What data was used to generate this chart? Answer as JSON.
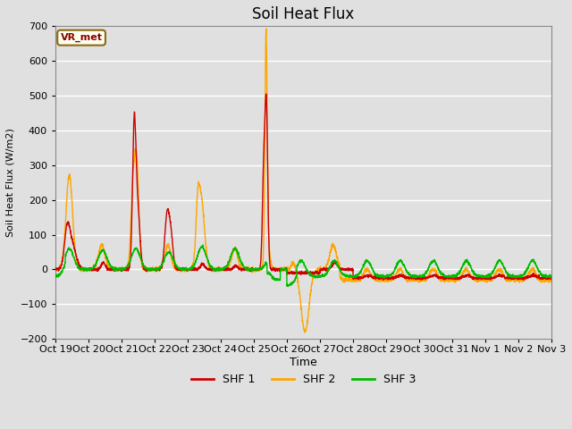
{
  "title": "Soil Heat Flux",
  "xlabel": "Time",
  "ylabel": "Soil Heat Flux (W/m2)",
  "ylim": [
    -200,
    700
  ],
  "yticks": [
    -200,
    -100,
    0,
    100,
    200,
    300,
    400,
    500,
    600,
    700
  ],
  "xtick_labels": [
    "Oct 19",
    "Oct 20",
    "Oct 21",
    "Oct 22",
    "Oct 23",
    "Oct 24",
    "Oct 25",
    "Oct 26",
    "Oct 27",
    "Oct 28",
    "Oct 29",
    "Oct 30",
    "Oct 31",
    "Nov 1",
    "Nov 2",
    "Nov 3"
  ],
  "annotation_text": "VR_met",
  "annotation_color": "#8B0000",
  "annotation_bg": "#FFFFF0",
  "line_colors": {
    "SHF 1": "#CC0000",
    "SHF 2": "#FFA500",
    "SHF 3": "#00BB00"
  },
  "line_widths": {
    "SHF 1": 1.0,
    "SHF 2": 1.0,
    "SHF 3": 1.0
  },
  "bg_color": "#E0E0E0",
  "grid_color": "#FFFFFF",
  "title_fontsize": 12,
  "n_points": 3200
}
